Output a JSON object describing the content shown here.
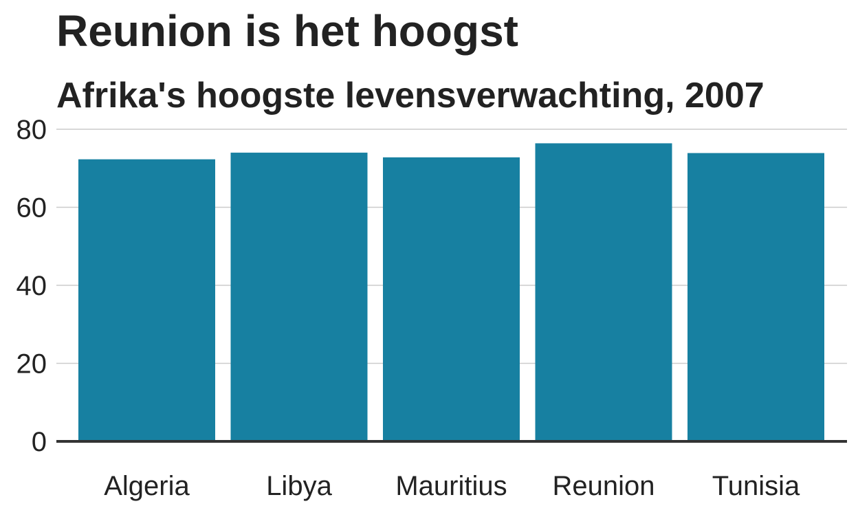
{
  "title": "Reunion is het hoogst",
  "subtitle": "Afrika's hoogste levensverwachting, 2007",
  "chart_data": {
    "type": "bar",
    "categories": [
      "Algeria",
      "Libya",
      "Mauritius",
      "Reunion",
      "Tunisia"
    ],
    "values": [
      72.3,
      74.0,
      72.8,
      76.4,
      73.9
    ],
    "ylim": [
      0,
      80
    ],
    "yticks": [
      0,
      20,
      40,
      60,
      80
    ],
    "ytick_labels": [
      "0",
      "20",
      "40",
      "60",
      "80"
    ],
    "grid": true,
    "colors": {
      "bar": "#1780a1",
      "grid": "#cbcbcb",
      "baseline": "#333333",
      "text": "#222222"
    }
  }
}
